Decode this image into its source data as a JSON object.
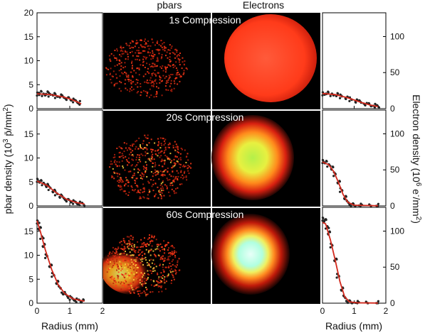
{
  "figure": {
    "column_titles": {
      "pbars": "pbars",
      "electrons": "Electrons"
    },
    "row_titles": [
      "1s Compression",
      "20s Compression",
      "60s Compression"
    ],
    "left_ylabel_base": "pbar density (10",
    "left_ylabel_exp": "3",
    "left_ylabel_unit": " p̄/mm",
    "left_ylabel_unit_exp": "2",
    "left_ylabel_close": ")",
    "right_ylabel_base": "Electron density (10",
    "right_ylabel_exp": "6",
    "right_ylabel_unit": " e",
    "right_ylabel_unit_sup": "-",
    "right_ylabel_unit2": "/mm",
    "right_ylabel_unit_exp": "2",
    "right_ylabel_close": ")",
    "xlabel": "Radius (mm)"
  },
  "chart_data": [
    {
      "type": "scatter",
      "panel": "pbar-1s",
      "xlim": [
        0,
        2
      ],
      "ylim": [
        0,
        20
      ],
      "xticks": [
        "0",
        "1",
        "2"
      ],
      "yticks": [
        "0",
        "5",
        "10",
        "15",
        "20"
      ],
      "points": [
        [
          0.02,
          3.1
        ],
        [
          0.1,
          3.3
        ],
        [
          0.2,
          3.0
        ],
        [
          0.3,
          3.2
        ],
        [
          0.4,
          2.9
        ],
        [
          0.5,
          3.0
        ],
        [
          0.6,
          2.6
        ],
        [
          0.7,
          2.7
        ],
        [
          0.8,
          2.4
        ],
        [
          0.9,
          2.2
        ],
        [
          1.0,
          2.0
        ],
        [
          1.1,
          1.7
        ],
        [
          1.2,
          1.5
        ],
        [
          1.3,
          1.2
        ]
      ],
      "fit": [
        [
          0,
          3.1
        ],
        [
          0.4,
          2.95
        ],
        [
          0.8,
          2.45
        ],
        [
          1.0,
          2.05
        ],
        [
          1.2,
          1.5
        ],
        [
          1.35,
          1.0
        ]
      ]
    },
    {
      "type": "scatter",
      "panel": "pbar-20s",
      "xlim": [
        0,
        2
      ],
      "ylim": [
        0,
        20
      ],
      "xticks": [
        "0",
        "1",
        "2"
      ],
      "yticks": [
        "0",
        "5",
        "10",
        "15"
      ],
      "points": [
        [
          0.02,
          5.4
        ],
        [
          0.1,
          5.0
        ],
        [
          0.2,
          4.7
        ],
        [
          0.3,
          4.2
        ],
        [
          0.4,
          3.7
        ],
        [
          0.5,
          3.1
        ],
        [
          0.6,
          2.6
        ],
        [
          0.7,
          2.1
        ],
        [
          0.8,
          1.7
        ],
        [
          0.9,
          1.3
        ],
        [
          1.0,
          1.0
        ],
        [
          1.1,
          0.8
        ],
        [
          1.2,
          0.6
        ],
        [
          1.3,
          0.5
        ],
        [
          1.4,
          0.4
        ]
      ],
      "fit": [
        [
          0,
          5.2
        ],
        [
          0.3,
          4.3
        ],
        [
          0.6,
          2.7
        ],
        [
          0.9,
          1.4
        ],
        [
          1.2,
          0.7
        ],
        [
          1.45,
          0.4
        ]
      ]
    },
    {
      "type": "scatter",
      "panel": "pbar-60s",
      "xlim": [
        0,
        2
      ],
      "ylim": [
        0,
        20
      ],
      "xticks": [
        "0",
        "1",
        "2"
      ],
      "yticks": [
        "0",
        "5",
        "10",
        "15"
      ],
      "points": [
        [
          0.02,
          17.0
        ],
        [
          0.08,
          15.5
        ],
        [
          0.15,
          13.8
        ],
        [
          0.2,
          12.0
        ],
        [
          0.3,
          9.8
        ],
        [
          0.4,
          7.8
        ],
        [
          0.5,
          5.9
        ],
        [
          0.6,
          4.4
        ],
        [
          0.7,
          3.2
        ],
        [
          0.8,
          2.2
        ],
        [
          0.9,
          1.6
        ],
        [
          1.0,
          1.1
        ],
        [
          1.1,
          0.8
        ],
        [
          1.2,
          0.6
        ],
        [
          1.3,
          0.5
        ],
        [
          1.4,
          0.4
        ]
      ],
      "fit": [
        [
          0,
          17.2
        ],
        [
          0.1,
          15.0
        ],
        [
          0.25,
          11.2
        ],
        [
          0.45,
          7.0
        ],
        [
          0.65,
          3.8
        ],
        [
          0.85,
          2.0
        ],
        [
          1.1,
          0.9
        ],
        [
          1.45,
          0.4
        ]
      ]
    },
    {
      "type": "scatter",
      "panel": "electron-1s",
      "xlim": [
        0,
        2
      ],
      "ylim": [
        0,
        133
      ],
      "xticks": [
        "0",
        "1",
        "2"
      ],
      "yticks": [
        "0",
        "50",
        "100"
      ],
      "points": [
        [
          0.02,
          21
        ],
        [
          0.15,
          21
        ],
        [
          0.3,
          20
        ],
        [
          0.45,
          19
        ],
        [
          0.6,
          17
        ],
        [
          0.75,
          15
        ],
        [
          0.9,
          13
        ],
        [
          1.05,
          11
        ],
        [
          1.2,
          9
        ],
        [
          1.35,
          7
        ],
        [
          1.5,
          5
        ],
        [
          1.65,
          4
        ],
        [
          1.75,
          3
        ]
      ],
      "fit": [
        [
          0,
          21
        ],
        [
          0.4,
          19.5
        ],
        [
          0.8,
          15
        ],
        [
          1.2,
          9
        ],
        [
          1.5,
          5
        ],
        [
          1.75,
          3
        ]
      ]
    },
    {
      "type": "scatter",
      "panel": "electron-20s",
      "xlim": [
        0,
        2
      ],
      "ylim": [
        0,
        133
      ],
      "xticks": [
        "0",
        "1",
        "2"
      ],
      "yticks": [
        "0",
        "50",
        "100"
      ],
      "points": [
        [
          0.02,
          62
        ],
        [
          0.1,
          60
        ],
        [
          0.2,
          57
        ],
        [
          0.3,
          52
        ],
        [
          0.4,
          44
        ],
        [
          0.5,
          33
        ],
        [
          0.6,
          22
        ],
        [
          0.7,
          12
        ],
        [
          0.8,
          5
        ],
        [
          0.9,
          2
        ],
        [
          1.0,
          1
        ],
        [
          1.2,
          0.5
        ],
        [
          1.5,
          0.3
        ],
        [
          1.75,
          0.2
        ]
      ],
      "fit": [
        [
          0,
          61
        ],
        [
          0.2,
          57
        ],
        [
          0.35,
          48
        ],
        [
          0.5,
          33
        ],
        [
          0.65,
          16
        ],
        [
          0.8,
          5
        ],
        [
          1.0,
          1
        ],
        [
          1.75,
          0.2
        ]
      ]
    },
    {
      "type": "scatter",
      "panel": "electron-60s",
      "xlim": [
        0,
        2
      ],
      "ylim": [
        0,
        133
      ],
      "xticks": [
        "0",
        "1",
        "2"
      ],
      "yticks": [
        "0",
        "50",
        "100"
      ],
      "points": [
        [
          0.02,
          117
        ],
        [
          0.08,
          114
        ],
        [
          0.15,
          106
        ],
        [
          0.2,
          97
        ],
        [
          0.3,
          80
        ],
        [
          0.4,
          60
        ],
        [
          0.5,
          38
        ],
        [
          0.6,
          20
        ],
        [
          0.7,
          8
        ],
        [
          0.8,
          3
        ],
        [
          0.9,
          1
        ],
        [
          1.1,
          0.5
        ],
        [
          1.4,
          0.3
        ],
        [
          1.75,
          0.2
        ]
      ],
      "fit": [
        [
          0,
          112
        ],
        [
          0.1,
          110
        ],
        [
          0.25,
          88
        ],
        [
          0.4,
          60
        ],
        [
          0.55,
          30
        ],
        [
          0.7,
          9
        ],
        [
          0.85,
          2
        ],
        [
          1.1,
          0.5
        ],
        [
          1.75,
          0.2
        ]
      ]
    }
  ]
}
